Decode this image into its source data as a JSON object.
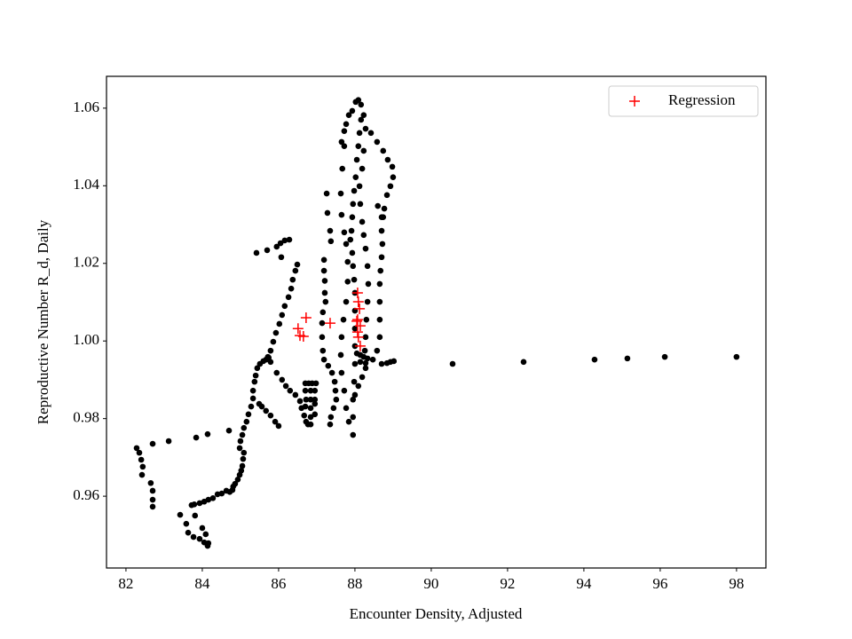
{
  "chart_data": {
    "type": "scatter",
    "xlabel": "Encounter Density, Adjusted",
    "ylabel": "Reproductive Number R_d, Daily",
    "xlim": [
      81.49,
      98.77
    ],
    "ylim": [
      0.9415,
      1.0682
    ],
    "xticks": [
      82,
      84,
      86,
      88,
      90,
      92,
      94,
      96,
      98
    ],
    "yticks": [
      0.96,
      0.98,
      {
        "value": 1,
        "label": "1.00"
      },
      1.02,
      1.04,
      1.06
    ],
    "legend": "upper right",
    "series": [
      {
        "color": "#000000",
        "marker": "o",
        "x": [
          82.28,
          82.35,
          82.4,
          82.44,
          82.42,
          82.65,
          82.7,
          82.7,
          82.7,
          82.7,
          83.12,
          83.84,
          84.14,
          84.7,
          83.42,
          83.58,
          83.63,
          83.77,
          83.93,
          84.05,
          84.14,
          84.16,
          84.09,
          84.0,
          83.81,
          83.72,
          83.79,
          83.93,
          84.05,
          84.16,
          84.28,
          84.4,
          84.51,
          84.63,
          84.72,
          84.79,
          84.81,
          84.86,
          84.93,
          84.98,
          85.02,
          85.05,
          85.07,
          85.09,
          84.98,
          85.0,
          85.05,
          85.09,
          85.16,
          85.21,
          85.28,
          85.33,
          85.33,
          85.37,
          85.4,
          85.44,
          85.51,
          85.6,
          85.67,
          85.74,
          85.79,
          85.95,
          86.09,
          86.19,
          86.3,
          86.44,
          86.56,
          86.6,
          86.67,
          86.72,
          86.77,
          85.49,
          85.56,
          85.67,
          85.79,
          85.91,
          86.0,
          85.79,
          85.86,
          85.93,
          86.02,
          86.09,
          86.16,
          86.26,
          86.33,
          86.37,
          86.44,
          86.49,
          85.72,
          85.42,
          85.7,
          86.07,
          85.95,
          86.05,
          86.16,
          86.28,
          86.7,
          86.79,
          86.88,
          86.98,
          86.7,
          86.84,
          86.95,
          86.84,
          86.95,
          86.84,
          86.95,
          86.84,
          86.95,
          86.84,
          86.7,
          86.72,
          87.19,
          87.19,
          87.21,
          87.21,
          87.23,
          87.16,
          87.14,
          87.14,
          87.16,
          87.19,
          87.3,
          87.4,
          87.47,
          87.49,
          87.51,
          87.44,
          87.37,
          87.35,
          87.26,
          87.28,
          87.35,
          87.37,
          87.65,
          87.72,
          87.77,
          87.84,
          87.93,
          88.02,
          88.09,
          88.16,
          88.16,
          88.12,
          88.09,
          88.05,
          88.02,
          87.98,
          87.95,
          87.93,
          87.91,
          87.88,
          87.93,
          87.95,
          87.98,
          88.0,
          88.0,
          88.0,
          88.0,
          88.0,
          87.98,
          87.95,
          87.95,
          87.95,
          87.72,
          87.67,
          87.63,
          87.65,
          87.72,
          87.77,
          87.81,
          87.81,
          87.77,
          87.7,
          87.65,
          87.63,
          87.65,
          87.72,
          87.77,
          87.84,
          88.23,
          88.28,
          88.42,
          88.58,
          88.74,
          88.86,
          88.98,
          89.0,
          88.93,
          88.84,
          88.77,
          88.74,
          88.7,
          88.72,
          88.7,
          88.67,
          88.65,
          88.65,
          88.65,
          88.65,
          88.58,
          88.47,
          88.28,
          88.19,
          88.09,
          88.0,
          88.23,
          88.19,
          88.12,
          88.14,
          88.19,
          88.23,
          88.28,
          88.33,
          88.35,
          88.33,
          88.3,
          88.28,
          88.26,
          88.7,
          88.6,
          88.7,
          88.84,
          88.93,
          89.02,
          90.56,
          92.42,
          94.28,
          95.14,
          96.12,
          98.0,
          88.05,
          88.14,
          88.23,
          88.33,
          88.14,
          88.28
        ],
        "values": [
          0.9724,
          0.9712,
          0.9694,
          0.9676,
          0.9655,
          0.9634,
          0.9614,
          0.9591,
          0.9573,
          0.9735,
          0.9742,
          0.9751,
          0.976,
          0.9769,
          0.9552,
          0.9529,
          0.9506,
          0.9495,
          0.949,
          0.9481,
          0.9472,
          0.9479,
          0.9502,
          0.9518,
          0.955,
          0.9577,
          0.9579,
          0.9582,
          0.9586,
          0.9591,
          0.9595,
          0.9605,
          0.9607,
          0.9614,
          0.9611,
          0.9616,
          0.9625,
          0.9632,
          0.9643,
          0.9655,
          0.9666,
          0.9678,
          0.9696,
          0.9712,
          0.9724,
          0.9742,
          0.9758,
          0.9776,
          0.9792,
          0.9811,
          0.9831,
          0.9852,
          0.9872,
          0.9895,
          0.9911,
          0.993,
          0.9941,
          0.9948,
          0.9952,
          0.9957,
          0.9946,
          0.9918,
          0.99,
          0.9884,
          0.9872,
          0.9861,
          0.9845,
          0.9827,
          0.9808,
          0.9792,
          0.9785,
          0.9838,
          0.9831,
          0.982,
          0.9808,
          0.9792,
          0.9781,
          0.9975,
          0.9998,
          1.0021,
          1.0044,
          1.0067,
          1.009,
          1.0113,
          1.0135,
          1.0158,
          1.0181,
          1.0197,
          0.9959,
          1.0227,
          1.0234,
          1.0216,
          1.0243,
          1.0252,
          1.0259,
          1.0261,
          0.9891,
          0.9891,
          0.9891,
          0.9891,
          0.9872,
          0.9872,
          0.9872,
          0.9849,
          0.9849,
          0.9827,
          0.9838,
          0.9804,
          0.9811,
          0.9785,
          0.9831,
          0.9849,
          1.0209,
          1.0181,
          1.0155,
          1.0124,
          1.0101,
          1.0074,
          1.0046,
          1.001,
          0.9975,
          0.9952,
          0.9936,
          0.9918,
          0.9895,
          0.9872,
          0.9849,
          0.9827,
          0.9804,
          0.9785,
          1.038,
          1.033,
          1.0284,
          1.0257,
          1.0513,
          1.0541,
          1.0559,
          1.0582,
          1.0593,
          1.0616,
          1.0621,
          1.0609,
          1.057,
          1.0536,
          1.0502,
          1.0467,
          1.0422,
          1.0387,
          1.0353,
          1.0319,
          1.0284,
          1.0261,
          1.0227,
          1.0193,
          1.0158,
          1.0124,
          1.0078,
          1.0032,
          0.9987,
          0.9941,
          0.9895,
          0.9849,
          0.9804,
          0.9758,
          1.0502,
          1.0444,
          1.038,
          1.0325,
          1.028,
          1.025,
          1.0204,
          1.0153,
          1.0101,
          1.0055,
          1.001,
          0.9964,
          0.9918,
          0.9872,
          0.9827,
          0.9792,
          1.0582,
          1.0547,
          1.0536,
          1.0513,
          1.049,
          1.0467,
          1.0449,
          1.0422,
          1.0399,
          1.0376,
          1.0341,
          1.0319,
          1.0284,
          1.025,
          1.0216,
          1.0181,
          1.0147,
          1.0101,
          1.0055,
          1.001,
          0.9975,
          0.9952,
          0.993,
          0.9907,
          0.9884,
          0.9861,
          1.049,
          1.0444,
          1.0399,
          1.0353,
          1.0307,
          1.0273,
          1.0238,
          1.0193,
          1.0147,
          1.0101,
          1.0055,
          1.001,
          0.9975,
          1.0319,
          1.0348,
          0.9941,
          0.9943,
          0.9946,
          0.9948,
          0.9941,
          0.9946,
          0.9952,
          0.9955,
          0.9959,
          0.9959,
          0.9968,
          0.9964,
          0.9959,
          0.9955,
          0.9946,
          0.9943
        ]
      },
      {
        "name": "Regression",
        "color": "#ff0000",
        "marker": "+",
        "x": [
          86.72,
          86.51,
          86.56,
          86.65,
          87.35,
          88.07,
          88.09,
          88.12,
          88.05,
          88.14,
          88.07,
          88.09,
          88.14,
          88.07
        ],
        "values": [
          1.006,
          1.0032,
          1.0014,
          1.0012,
          1.0046,
          1.0124,
          1.0101,
          1.0083,
          1.0051,
          1.0039,
          1.0023,
          1.001,
          0.9987,
          1.0055
        ]
      }
    ]
  }
}
